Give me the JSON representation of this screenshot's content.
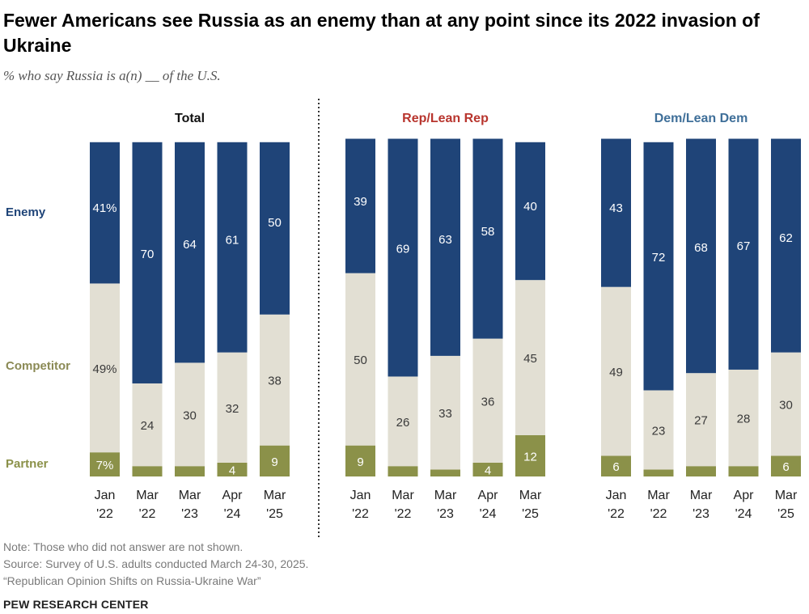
{
  "title": "Fewer Americans see Russia as an enemy than at any point since its 2022 invasion of Ukraine",
  "subtitle": "% who say Russia is a(n) __ of the U.S.",
  "notes": {
    "note": "Note: Those who did not answer are not shown.",
    "source": "Source: Survey of U.S. adults conducted March 24-30, 2025.",
    "report": "“Republican Opinion Shifts on Russia-Ukraine War”"
  },
  "brand": "PEW RESEARCH CENTER",
  "colors": {
    "enemy": "#1f4478",
    "competitor": "#e2dfd3",
    "partner": "#8b9149",
    "enemy_label": "#1f4478",
    "competitor_label": "#8b8a55",
    "partner_label": "#8b9149",
    "rep_title": "#b8352e",
    "dem_title": "#3f6f99"
  },
  "chart_data": {
    "type": "bar",
    "stacked": true,
    "categories": [
      "Jan\n'22",
      "Mar\n'22",
      "Mar\n'23",
      "Apr\n'24",
      "Mar\n'25"
    ],
    "row_labels": [
      "Enemy",
      "Competitor",
      "Partner"
    ],
    "panels": [
      {
        "name": "Total",
        "series": [
          {
            "name": "Enemy",
            "values": [
              41,
              70,
              64,
              61,
              50
            ],
            "labels": [
              "41%",
              "70",
              "64",
              "61",
              "50"
            ]
          },
          {
            "name": "Competitor",
            "values": [
              49,
              24,
              30,
              32,
              38
            ],
            "labels": [
              "49%",
              "24",
              "30",
              "32",
              "38"
            ]
          },
          {
            "name": "Partner",
            "values": [
              7,
              3,
              3,
              4,
              9
            ],
            "labels": [
              "7%",
              "",
              "",
              "4",
              "9"
            ]
          }
        ]
      },
      {
        "name": "Rep/Lean Rep",
        "series": [
          {
            "name": "Enemy",
            "values": [
              39,
              69,
              63,
              58,
              40
            ],
            "labels": [
              "39",
              "69",
              "63",
              "58",
              "40"
            ]
          },
          {
            "name": "Competitor",
            "values": [
              50,
              26,
              33,
              36,
              45
            ],
            "labels": [
              "50",
              "26",
              "33",
              "36",
              "45"
            ]
          },
          {
            "name": "Partner",
            "values": [
              9,
              3,
              2,
              4,
              12
            ],
            "labels": [
              "9",
              "",
              "",
              "4",
              "12"
            ]
          }
        ]
      },
      {
        "name": "Dem/Lean Dem",
        "series": [
          {
            "name": "Enemy",
            "values": [
              43,
              72,
              68,
              67,
              62
            ],
            "labels": [
              "43",
              "72",
              "68",
              "67",
              "62"
            ]
          },
          {
            "name": "Competitor",
            "values": [
              49,
              23,
              27,
              28,
              30
            ],
            "labels": [
              "49",
              "23",
              "27",
              "28",
              "30"
            ]
          },
          {
            "name": "Partner",
            "values": [
              6,
              2,
              3,
              3,
              6
            ],
            "labels": [
              "6",
              "",
              "",
              "",
              "6"
            ]
          }
        ]
      }
    ]
  }
}
